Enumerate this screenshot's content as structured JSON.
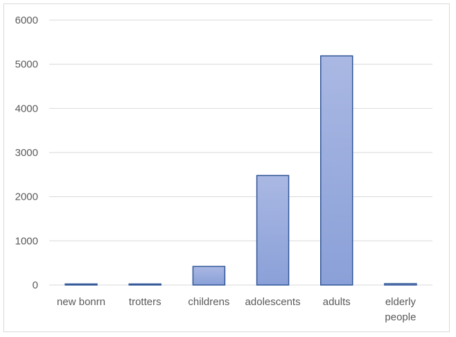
{
  "chart_data": {
    "type": "bar",
    "categories": [
      "new bonrn",
      "trotters",
      "childrens",
      "adolescents",
      "adults",
      "elderly people"
    ],
    "category_lines": [
      [
        "new bonrn"
      ],
      [
        "trotters"
      ],
      [
        "childrens"
      ],
      [
        "adolescents"
      ],
      [
        "adults"
      ],
      [
        "elderly",
        "people"
      ]
    ],
    "values": [
      15,
      15,
      420,
      2480,
      5190,
      30
    ],
    "ylim": [
      0,
      6000
    ],
    "yticks": [
      0,
      1000,
      2000,
      3000,
      4000,
      5000,
      6000
    ],
    "grid": true,
    "legend": "none",
    "colors": {
      "bar_top": "#aab8e3",
      "bar_bottom": "#8aa0d8",
      "bar_stroke": "#2f5597",
      "grid": "#d9d9d9"
    }
  }
}
